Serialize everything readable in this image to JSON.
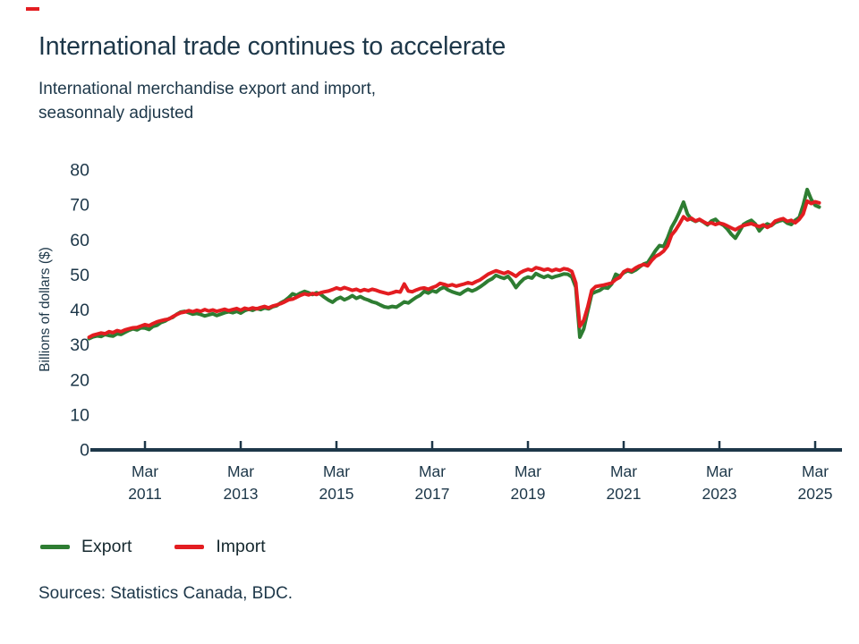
{
  "colors": {
    "text": "#1d3749",
    "axis": "#1d3749",
    "export_green": "#2e7d32",
    "import_red": "#e31d21",
    "background": "#ffffff"
  },
  "header": {
    "title": "International trade continues to accelerate",
    "subtitle_line1": "International merchandise export and import,",
    "subtitle_line2": "seasonnaly adjusted"
  },
  "legend": {
    "items": [
      {
        "label": "Export",
        "color": "#2e7d32"
      },
      {
        "label": "Import",
        "color": "#e31d21"
      }
    ]
  },
  "footer": {
    "sources": "Sources: Statistics Canada, BDC."
  },
  "chart_data": {
    "type": "line",
    "title": "International trade continues to accelerate",
    "subtitle": "International merchandise export and import, seasonnaly adjusted",
    "ylabel": "Billions of dollars ($)",
    "xlabel": "",
    "ylim": [
      0,
      80
    ],
    "yticks": [
      0,
      10,
      20,
      30,
      40,
      50,
      60,
      70,
      80
    ],
    "grid": false,
    "legend_position": "bottom-left",
    "frequency": "monthly",
    "x_start": "2010-01",
    "x_end": "2025-04",
    "xticks": [
      {
        "label_top": "Mar",
        "label_bottom": "2011",
        "month_index": 14
      },
      {
        "label_top": "Mar",
        "label_bottom": "2013",
        "month_index": 38
      },
      {
        "label_top": "Mar",
        "label_bottom": "2015",
        "month_index": 62
      },
      {
        "label_top": "Mar",
        "label_bottom": "2017",
        "month_index": 86
      },
      {
        "label_top": "Mar",
        "label_bottom": "2019",
        "month_index": 110
      },
      {
        "label_top": "Mar",
        "label_bottom": "2021",
        "month_index": 134
      },
      {
        "label_top": "Mar",
        "label_bottom": "2023",
        "month_index": 158
      },
      {
        "label_top": "Mar",
        "label_bottom": "2025",
        "month_index": 182
      }
    ],
    "series": [
      {
        "name": "Export",
        "color": "#2e7d32",
        "values": [
          31.8,
          32.3,
          32.6,
          32.4,
          33.0,
          32.7,
          32.5,
          33.2,
          33.0,
          33.6,
          34.2,
          34.6,
          34.3,
          34.9,
          34.8,
          34.4,
          35.3,
          35.6,
          36.4,
          36.8,
          37.5,
          37.9,
          38.8,
          39.4,
          39.6,
          39.2,
          38.8,
          39.0,
          38.7,
          38.3,
          38.6,
          38.9,
          38.4,
          38.8,
          39.2,
          39.5,
          39.2,
          39.6,
          39.1,
          39.8,
          40.2,
          39.9,
          40.4,
          40.1,
          40.6,
          40.3,
          40.9,
          41.2,
          42.0,
          42.6,
          43.5,
          44.6,
          44.2,
          44.8,
          45.3,
          44.9,
          44.4,
          44.9,
          44.5,
          43.6,
          42.8,
          42.2,
          43.1,
          43.6,
          42.9,
          43.4,
          44.1,
          43.3,
          43.8,
          43.2,
          42.8,
          42.3,
          42.0,
          41.4,
          40.9,
          40.7,
          41.0,
          40.8,
          41.5,
          42.3,
          42.0,
          42.8,
          43.6,
          44.2,
          45.3,
          44.8,
          45.5,
          45.1,
          46.0,
          46.5,
          45.7,
          45.2,
          44.8,
          44.5,
          45.3,
          45.9,
          45.4,
          45.9,
          46.6,
          47.4,
          48.3,
          48.9,
          49.9,
          49.4,
          49.0,
          49.6,
          48.2,
          46.4,
          47.8,
          48.9,
          49.4,
          49.1,
          50.4,
          49.8,
          49.3,
          49.8,
          49.2,
          49.6,
          49.9,
          50.3,
          50.2,
          49.4,
          46.5,
          32.2,
          34.6,
          39.7,
          44.6,
          45.2,
          45.6,
          46.4,
          46.2,
          47.4,
          50.2,
          49.6,
          50.6,
          51.2,
          50.8,
          51.4,
          52.3,
          53.1,
          53.5,
          55.2,
          57.0,
          58.4,
          58.1,
          60.6,
          63.6,
          65.6,
          68.0,
          70.8,
          67.4,
          65.9,
          65.3,
          65.8,
          65.1,
          64.3,
          65.4,
          65.9,
          64.8,
          64.2,
          63.1,
          61.6,
          60.5,
          62.4,
          64.4,
          65.1,
          65.6,
          64.6,
          62.6,
          63.9,
          64.6,
          64.1,
          65.0,
          65.4,
          65.7,
          64.8,
          64.4,
          65.6,
          66.4,
          69.9,
          74.4,
          71.6,
          69.9,
          69.4
        ]
      },
      {
        "name": "Import",
        "color": "#e31d21",
        "values": [
          32.2,
          32.8,
          33.1,
          33.4,
          33.2,
          33.8,
          33.5,
          34.1,
          33.8,
          34.3,
          34.6,
          34.9,
          35.0,
          35.4,
          35.8,
          35.5,
          36.1,
          36.6,
          36.9,
          37.2,
          37.4,
          38.1,
          38.7,
          39.2,
          39.4,
          39.8,
          39.5,
          39.9,
          39.6,
          40.1,
          39.7,
          40.0,
          39.6,
          39.9,
          40.2,
          39.8,
          40.1,
          40.4,
          39.9,
          40.5,
          40.2,
          40.6,
          40.3,
          40.7,
          41.0,
          40.6,
          41.1,
          41.4,
          41.8,
          42.3,
          42.9,
          43.1,
          43.6,
          44.2,
          44.6,
          44.3,
          44.7,
          44.4,
          44.9,
          45.2,
          45.4,
          45.8,
          46.3,
          45.9,
          46.4,
          46.0,
          45.6,
          45.9,
          45.4,
          45.8,
          45.5,
          45.9,
          45.6,
          45.2,
          44.9,
          44.6,
          44.9,
          45.3,
          45.1,
          47.4,
          45.4,
          45.2,
          45.7,
          46.1,
          46.3,
          45.9,
          46.4,
          46.8,
          47.6,
          47.3,
          46.9,
          47.2,
          46.8,
          47.1,
          47.4,
          47.8,
          47.5,
          48.1,
          48.6,
          49.4,
          50.2,
          50.7,
          51.2,
          50.8,
          50.4,
          50.9,
          50.3,
          49.6,
          50.6,
          51.2,
          51.6,
          51.3,
          52.1,
          51.8,
          51.4,
          51.7,
          51.2,
          51.6,
          51.3,
          51.8,
          51.6,
          51.0,
          47.7,
          35.3,
          37.0,
          40.9,
          45.6,
          46.7,
          46.9,
          47.1,
          47.4,
          47.7,
          48.7,
          49.3,
          50.9,
          51.5,
          51.2,
          52.0,
          52.6,
          53.0,
          52.6,
          54.1,
          55.3,
          55.9,
          56.8,
          58.3,
          61.4,
          62.8,
          64.6,
          66.6,
          65.7,
          66.2,
          65.4,
          65.9,
          65.2,
          64.6,
          64.9,
          64.4,
          64.8,
          64.5,
          64.0,
          63.4,
          62.9,
          63.6,
          64.1,
          64.4,
          64.7,
          64.2,
          63.8,
          64.3,
          63.6,
          64.2,
          65.4,
          65.8,
          66.1,
          65.3,
          65.6,
          64.9,
          65.9,
          67.4,
          71.1,
          70.4,
          70.9,
          70.6
        ]
      }
    ]
  }
}
